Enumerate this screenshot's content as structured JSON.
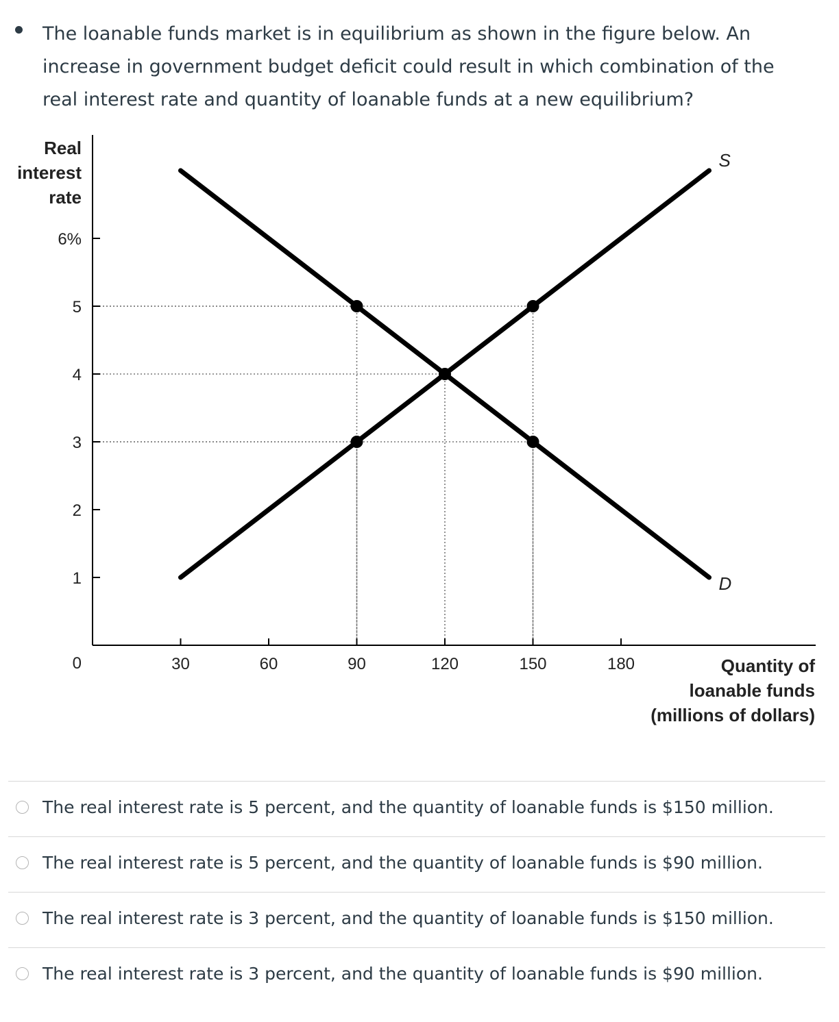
{
  "question": {
    "text": "The loanable funds market is in equilibrium as shown in the figure below. An increase in government budget deficit could result in which combination of the real interest rate and quantity of loanable funds at a new equilibrium?"
  },
  "chart_data": {
    "type": "line",
    "ylabel_lines": [
      "Real",
      "interest",
      "rate"
    ],
    "xlabel_lines": [
      "Quantity of",
      "loanable funds",
      "(millions of dollars)"
    ],
    "yticks": [
      "0",
      "1",
      "2",
      "3",
      "4",
      "5",
      "6%"
    ],
    "ytick_values": [
      0,
      1,
      2,
      3,
      4,
      5,
      6
    ],
    "xticks": [
      "30",
      "60",
      "90",
      "120",
      "150",
      "180"
    ],
    "xtick_values": [
      30,
      60,
      90,
      120,
      150,
      180
    ],
    "xlim": [
      0,
      215
    ],
    "ylim": [
      0,
      7
    ],
    "series": [
      {
        "name": "S",
        "x": [
          30,
          210
        ],
        "y": [
          1,
          7
        ]
      },
      {
        "name": "D",
        "x": [
          30,
          210
        ],
        "y": [
          7,
          1
        ]
      }
    ],
    "points": [
      {
        "x": 90,
        "y": 5
      },
      {
        "x": 150,
        "y": 5
      },
      {
        "x": 120,
        "y": 4
      },
      {
        "x": 90,
        "y": 3
      },
      {
        "x": 150,
        "y": 3
      }
    ],
    "guides": [
      {
        "x": 90,
        "y": 5
      },
      {
        "x": 150,
        "y": 5
      },
      {
        "x": 120,
        "y": 4
      },
      {
        "x": 90,
        "y": 3
      },
      {
        "x": 150,
        "y": 3
      }
    ],
    "grid": false,
    "line_color": "#000000"
  },
  "answers": [
    {
      "label": "The real interest rate is 5 percent, and the quantity of loanable funds is $150 million."
    },
    {
      "label": "The real interest rate is 5 percent, and the quantity of loanable funds is $90 million."
    },
    {
      "label": "The real interest rate is 3 percent, and the quantity of loanable funds is $150 million."
    },
    {
      "label": "The real interest rate is 3 percent, and the quantity of loanable funds is $90 million."
    }
  ]
}
